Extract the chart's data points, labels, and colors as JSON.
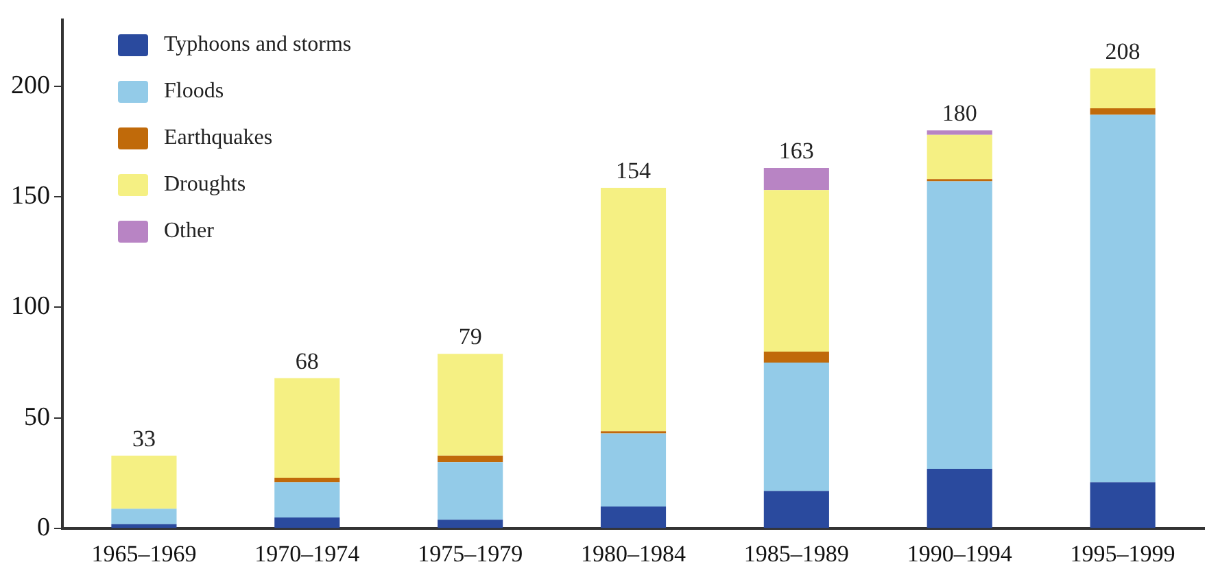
{
  "chart_data": {
    "type": "bar",
    "stacked": true,
    "categories": [
      "1965–1969",
      "1970–1974",
      "1975–1979",
      "1980–1984",
      "1985–1989",
      "1990–1994",
      "1995–1999"
    ],
    "series": [
      {
        "name": "Typhoons and storms",
        "color": "#2a4a9e",
        "values": [
          2,
          5,
          4,
          10,
          17,
          27,
          21
        ]
      },
      {
        "name": "Floods",
        "color": "#93cbe8",
        "values": [
          7,
          16,
          26,
          33,
          58,
          130,
          166
        ]
      },
      {
        "name": "Earthquakes",
        "color": "#c06a0a",
        "values": [
          0,
          2,
          3,
          1,
          5,
          1,
          3
        ]
      },
      {
        "name": "Droughts",
        "color": "#f5f083",
        "values": [
          24,
          45,
          46,
          110,
          73,
          20,
          18
        ]
      },
      {
        "name": "Other",
        "color": "#b884c4",
        "values": [
          0,
          0,
          0,
          0,
          10,
          2,
          0
        ]
      }
    ],
    "totals": [
      "33",
      "68",
      "79",
      "154",
      "163",
      "180",
      "208"
    ],
    "ylim": [
      0,
      230
    ],
    "yticks": [
      0,
      50,
      100,
      150,
      200
    ],
    "grid": false,
    "legend": "top left"
  }
}
